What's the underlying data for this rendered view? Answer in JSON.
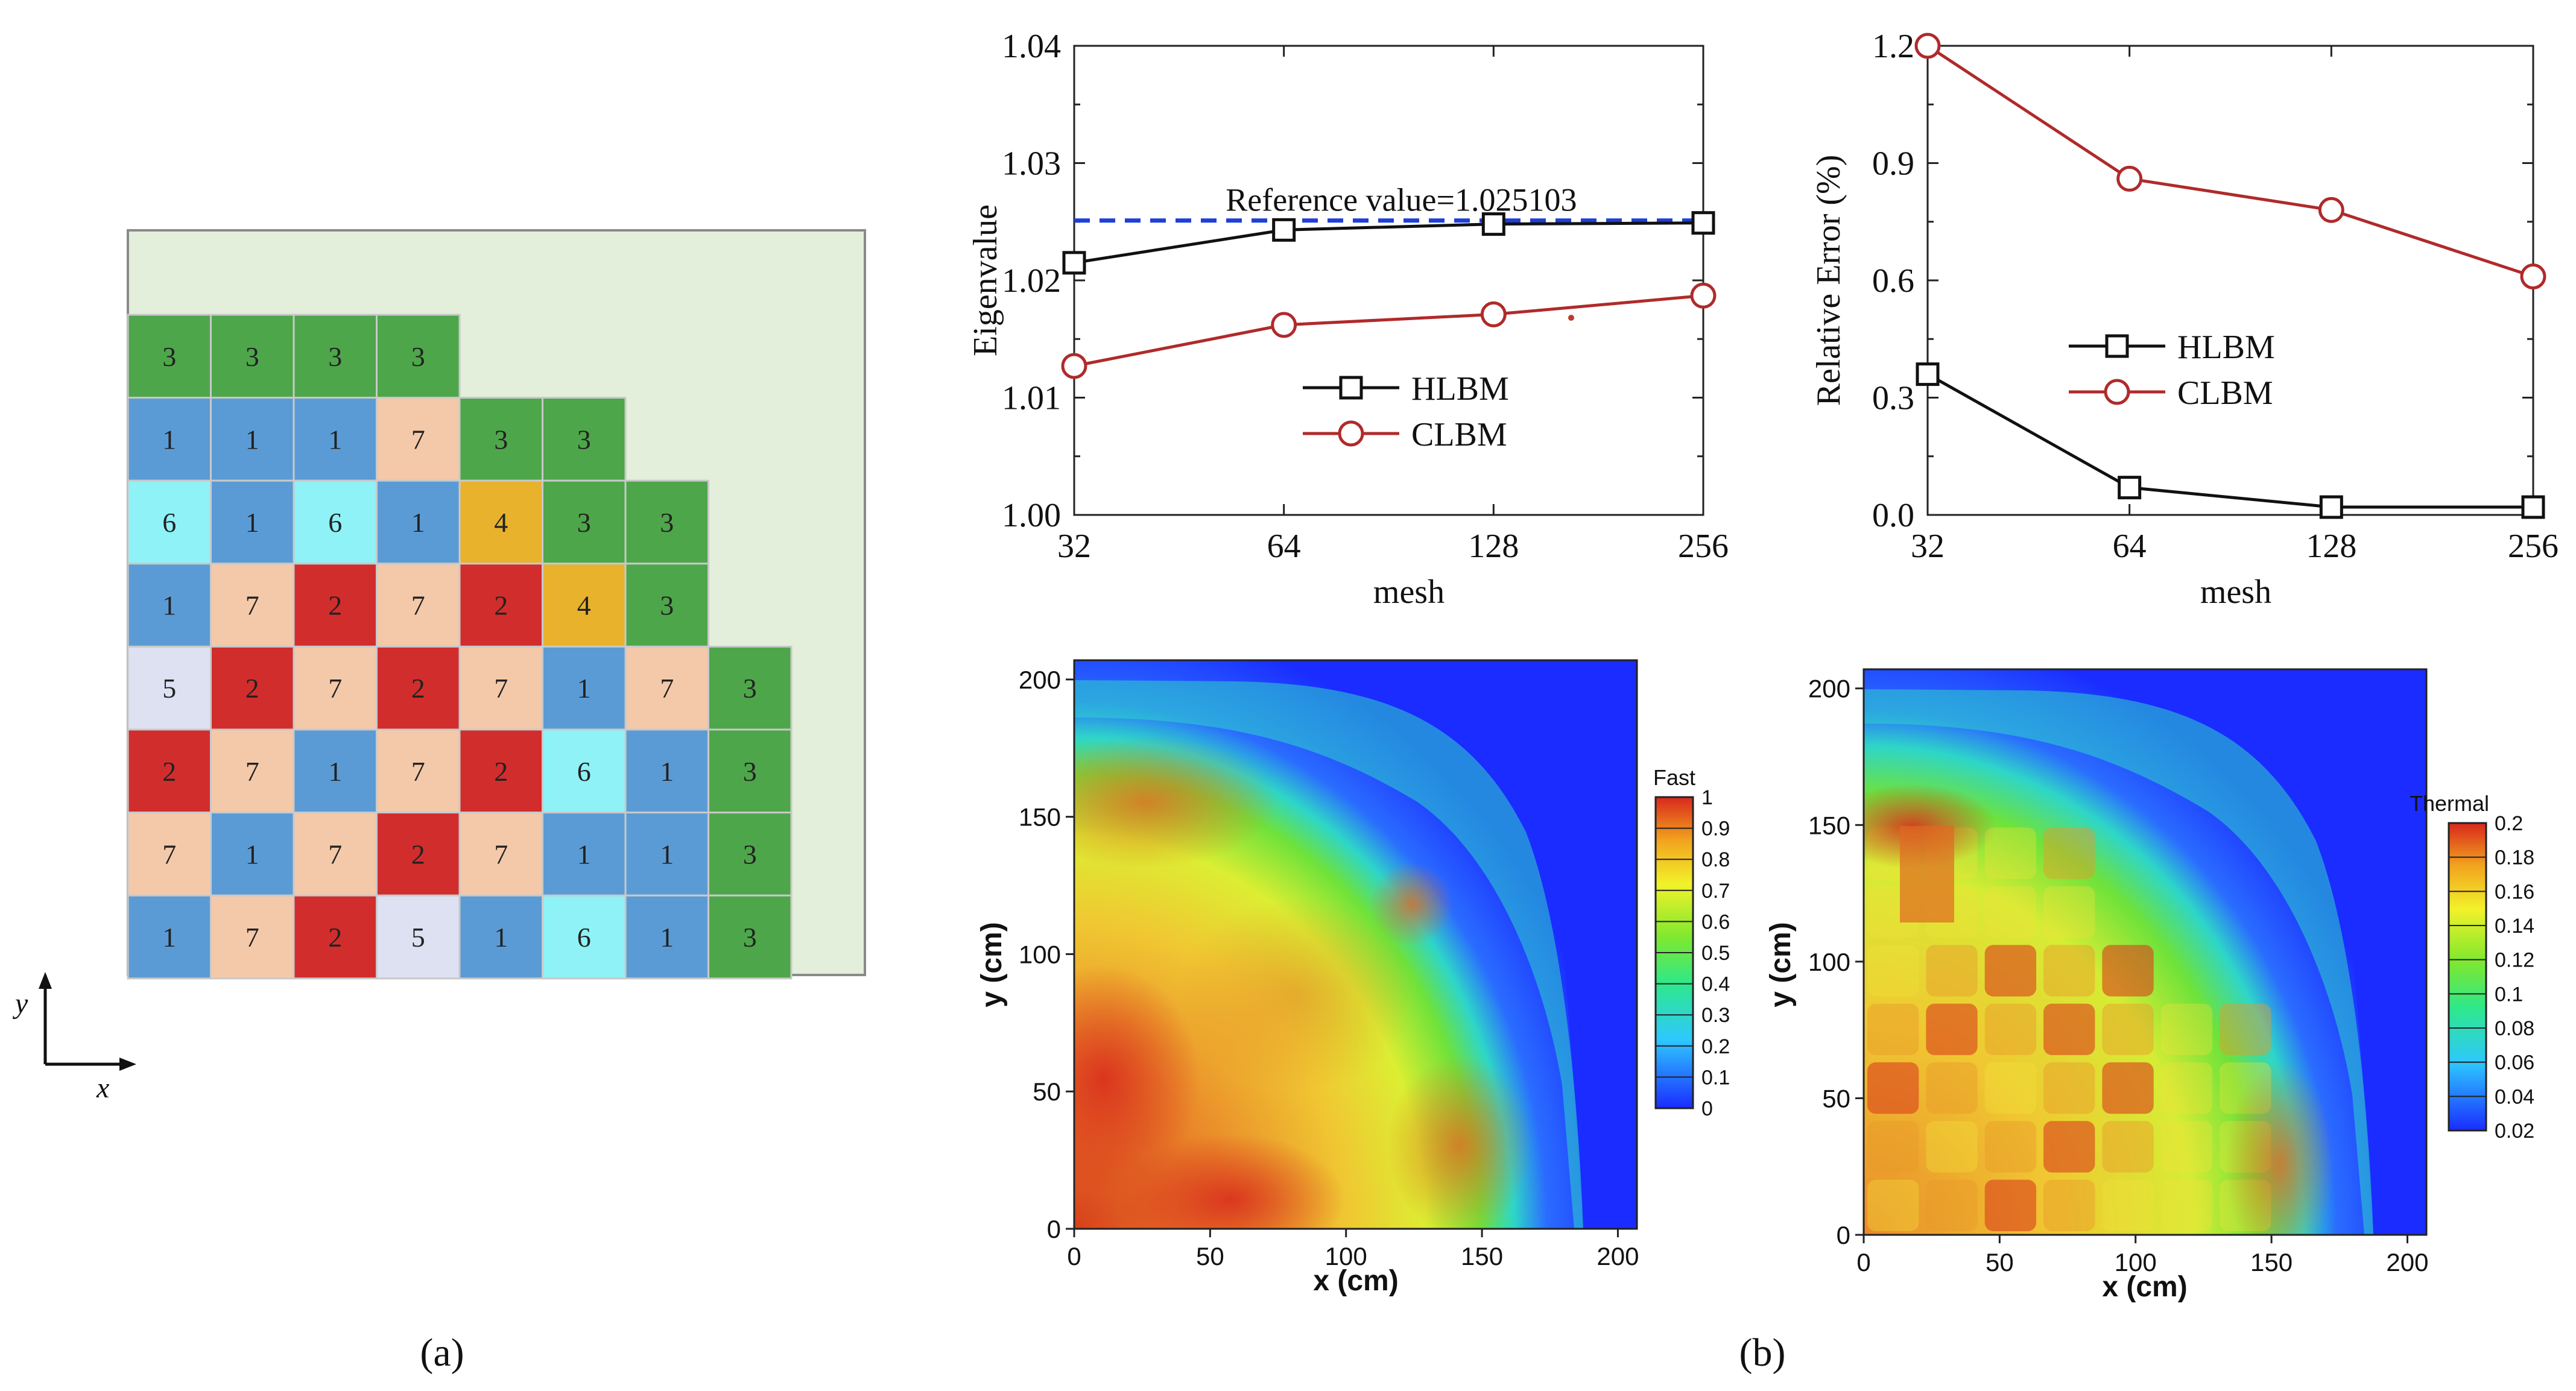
{
  "panel_labels": {
    "a": "(a)",
    "b": "(b)"
  },
  "core_map": {
    "rows": [
      [
        3,
        3,
        3,
        3
      ],
      [
        1,
        1,
        1,
        7,
        3,
        3
      ],
      [
        6,
        1,
        6,
        1,
        4,
        3,
        3
      ],
      [
        1,
        7,
        2,
        7,
        2,
        4,
        3
      ],
      [
        5,
        2,
        7,
        2,
        7,
        1,
        7,
        3
      ],
      [
        2,
        7,
        1,
        7,
        2,
        6,
        1,
        3
      ],
      [
        7,
        1,
        7,
        2,
        7,
        1,
        1,
        3
      ],
      [
        1,
        7,
        2,
        5,
        1,
        6,
        1,
        3
      ]
    ],
    "colors": {
      "1": "#5b9bd5",
      "2": "#d22d2d",
      "3": "#4ea64a",
      "4": "#e8b22c",
      "5": "#dde1f2",
      "6": "#8ef2f7",
      "7": "#f4c9a9",
      "reflector": "#e3eedb"
    },
    "axis_x": "x",
    "axis_y": "y"
  },
  "chart_data": [
    {
      "id": "eigenvalue",
      "type": "line",
      "categories": [
        "32",
        "64",
        "128",
        "256"
      ],
      "series": [
        {
          "name": "HLBM",
          "values": [
            1.0215,
            1.0243,
            1.0248,
            1.0249
          ],
          "color": "#111111",
          "marker": "square"
        },
        {
          "name": "CLBM",
          "values": [
            1.0127,
            1.0162,
            1.0171,
            1.0187
          ],
          "color": "#b02a2a",
          "marker": "circle"
        }
      ],
      "reference": {
        "label": "Reference value=1.025103",
        "value": 1.025103,
        "color": "#1f3fd6"
      },
      "title": "",
      "xlabel": "mesh",
      "ylabel": "Eigenvalue",
      "ylim": [
        1.0,
        1.04
      ],
      "yticks": [
        "1.00",
        "1.01",
        "1.02",
        "1.03",
        "1.04"
      ],
      "legend": "center"
    },
    {
      "id": "relative-error",
      "type": "line",
      "categories": [
        "32",
        "64",
        "128",
        "256"
      ],
      "series": [
        {
          "name": "HLBM",
          "values": [
            0.36,
            0.07,
            0.02,
            0.02
          ],
          "color": "#111111",
          "marker": "square"
        },
        {
          "name": "CLBM",
          "values": [
            1.2,
            0.86,
            0.78,
            0.61
          ],
          "color": "#b02a2a",
          "marker": "circle"
        }
      ],
      "title": "",
      "xlabel": "mesh",
      "ylabel": "Relative Error (%)",
      "ylim": [
        0.0,
        1.2
      ],
      "yticks": [
        "0.0",
        "0.3",
        "0.6",
        "0.9",
        "1.2"
      ],
      "legend": "center-right"
    },
    {
      "id": "fast-flux",
      "type": "heatmap",
      "title": "Fast",
      "xlabel": "x (cm)",
      "ylabel": "y (cm)",
      "xticks": [
        "0",
        "50",
        "100",
        "150",
        "200"
      ],
      "yticks": [
        "0",
        "50",
        "100",
        "150",
        "200"
      ],
      "range": [
        0,
        1
      ],
      "colorbar_ticks": [
        "0",
        "0.1",
        "0.2",
        "0.3",
        "0.4",
        "0.5",
        "0.6",
        "0.7",
        "0.8",
        "0.9",
        "1"
      ]
    },
    {
      "id": "thermal-flux",
      "type": "heatmap",
      "title": "Thermal",
      "xlabel": "x (cm)",
      "ylabel": "y (cm)",
      "xticks": [
        "0",
        "50",
        "100",
        "150",
        "200"
      ],
      "yticks": [
        "0",
        "50",
        "100",
        "150",
        "200"
      ],
      "range": [
        0.02,
        0.2
      ],
      "colorbar_ticks": [
        "0.02",
        "0.04",
        "0.06",
        "0.08",
        "0.1",
        "0.12",
        "0.14",
        "0.16",
        "0.18",
        "0.2"
      ]
    }
  ]
}
